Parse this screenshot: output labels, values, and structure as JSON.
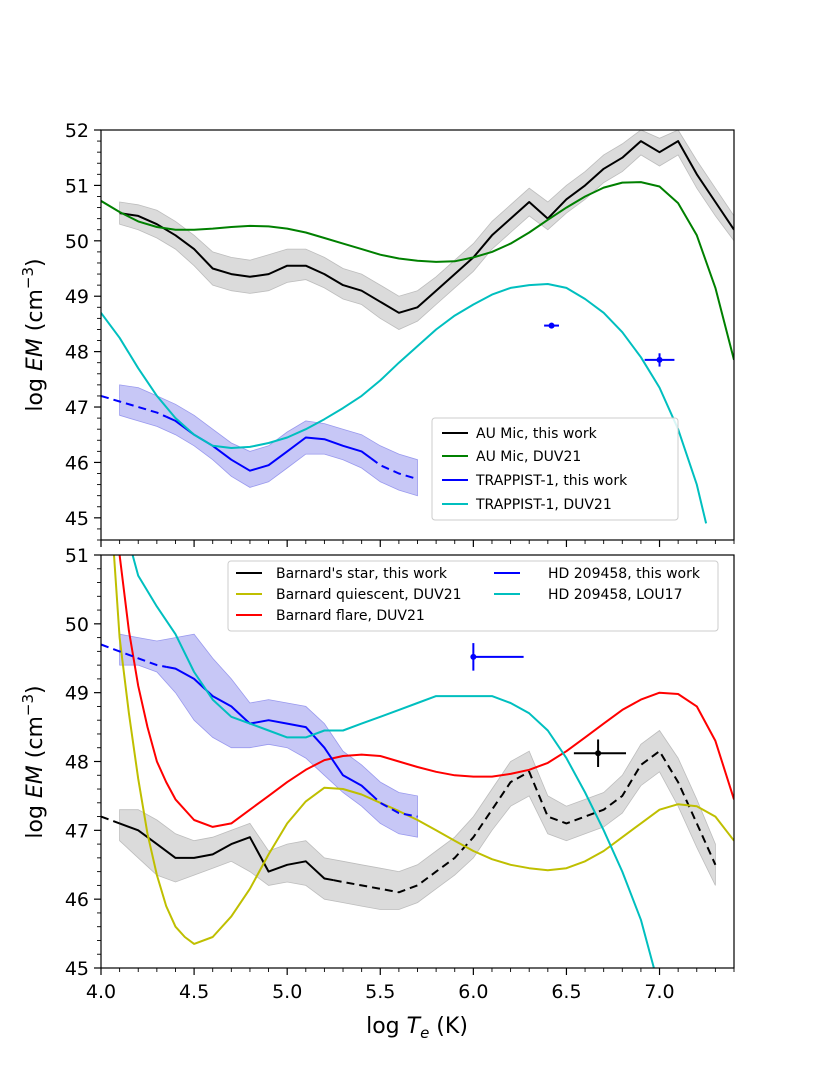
{
  "chart_data": [
    {
      "type": "line",
      "panel": "top",
      "xlim": [
        4.0,
        7.4
      ],
      "ylim": [
        44.6,
        52.0
      ],
      "ylabel_prefix": "log ",
      "ylabel_em": "EM",
      "ylabel_unit": " (cm",
      "ylabel_sup": "−3",
      "ylabel_close": ")",
      "yticks": [
        45,
        46,
        47,
        48,
        49,
        50,
        51,
        52
      ],
      "ytick_labels": [
        "45",
        "46",
        "47",
        "48",
        "49",
        "50",
        "51",
        "52"
      ],
      "grid": false,
      "legend_position": "lower-right",
      "series": [
        {
          "name": "AU Mic, this work",
          "color": "#000000",
          "style": "solid",
          "band_color": "#bdbdbd",
          "x": [
            4.1,
            4.2,
            4.3,
            4.4,
            4.5,
            4.6,
            4.7,
            4.8,
            4.9,
            5.0,
            5.1,
            5.2,
            5.3,
            5.4,
            5.5,
            5.6,
            5.7,
            5.8,
            5.9,
            6.0,
            6.1,
            6.2,
            6.3,
            6.4,
            6.5,
            6.6,
            6.7,
            6.8,
            6.9,
            7.0,
            7.1,
            7.2,
            7.3,
            7.4
          ],
          "values": [
            50.5,
            50.45,
            50.3,
            50.1,
            49.85,
            49.5,
            49.4,
            49.35,
            49.4,
            49.55,
            49.55,
            49.4,
            49.2,
            49.1,
            48.9,
            48.7,
            48.8,
            49.1,
            49.4,
            49.7,
            50.1,
            50.4,
            50.7,
            50.4,
            50.75,
            51.0,
            51.3,
            51.5,
            51.8,
            51.6,
            51.8,
            51.2,
            50.7,
            50.2
          ],
          "band_low": [
            50.3,
            50.2,
            50.05,
            49.85,
            49.55,
            49.2,
            49.1,
            49.05,
            49.1,
            49.25,
            49.3,
            49.15,
            48.95,
            48.85,
            48.6,
            48.4,
            48.55,
            48.85,
            49.15,
            49.45,
            49.85,
            50.15,
            50.45,
            50.2,
            50.5,
            50.75,
            51.05,
            51.25,
            51.55,
            51.35,
            51.55,
            50.95,
            50.45,
            50.0
          ],
          "band_high": [
            50.7,
            50.65,
            50.55,
            50.35,
            50.1,
            49.8,
            49.7,
            49.65,
            49.75,
            49.85,
            49.85,
            49.7,
            49.5,
            49.4,
            49.2,
            49.0,
            49.1,
            49.35,
            49.65,
            49.95,
            50.35,
            50.65,
            50.95,
            50.7,
            51.0,
            51.25,
            51.55,
            51.75,
            52.0,
            51.85,
            52.0,
            51.45,
            50.95,
            50.45
          ]
        },
        {
          "name": "AU Mic, DUV21",
          "color": "#008000",
          "style": "solid",
          "x": [
            4.0,
            4.1,
            4.2,
            4.3,
            4.4,
            4.5,
            4.6,
            4.7,
            4.8,
            4.9,
            5.0,
            5.1,
            5.2,
            5.3,
            5.4,
            5.5,
            5.6,
            5.7,
            5.8,
            5.9,
            6.0,
            6.1,
            6.2,
            6.3,
            6.4,
            6.5,
            6.6,
            6.7,
            6.8,
            6.9,
            7.0,
            7.1,
            7.2,
            7.3,
            7.4
          ],
          "values": [
            50.72,
            50.52,
            50.35,
            50.25,
            50.2,
            50.2,
            50.22,
            50.25,
            50.27,
            50.26,
            50.22,
            50.15,
            50.05,
            49.95,
            49.85,
            49.75,
            49.68,
            49.64,
            49.62,
            49.63,
            49.7,
            49.8,
            49.95,
            50.15,
            50.38,
            50.6,
            50.8,
            50.96,
            51.05,
            51.06,
            50.98,
            50.68,
            50.1,
            49.15,
            47.85
          ]
        },
        {
          "name": "TRAPPIST-1, this work",
          "color": "#0000ff",
          "style": "solid",
          "band_color": "#9999ee",
          "x": [
            4.0,
            4.1,
            4.2,
            4.3,
            4.4,
            4.5,
            4.6,
            4.7,
            4.8,
            4.9,
            5.0,
            5.1,
            5.2,
            5.3,
            5.4,
            5.5,
            5.6,
            5.7
          ],
          "values": [
            47.2,
            47.1,
            47.0,
            46.9,
            46.75,
            46.5,
            46.3,
            46.05,
            45.85,
            45.95,
            46.2,
            46.45,
            46.42,
            46.3,
            46.2,
            45.95,
            45.8,
            45.7
          ],
          "dashed_before": 4.35,
          "dashed_after": 5.45,
          "band_x": [
            4.1,
            4.2,
            4.3,
            4.4,
            4.5,
            4.6,
            4.7,
            4.8,
            4.9,
            5.0,
            5.1,
            5.2,
            5.3,
            5.4,
            5.5,
            5.6,
            5.7
          ],
          "band_low": [
            46.85,
            46.75,
            46.65,
            46.5,
            46.3,
            46.05,
            45.75,
            45.55,
            45.65,
            45.9,
            46.15,
            46.15,
            46.05,
            45.9,
            45.65,
            45.5,
            45.4
          ],
          "band_high": [
            47.4,
            47.35,
            47.2,
            47.05,
            46.85,
            46.6,
            46.35,
            46.2,
            46.3,
            46.55,
            46.75,
            46.7,
            46.6,
            46.5,
            46.3,
            46.15,
            46.05
          ]
        },
        {
          "name": "TRAPPIST-1, DUV21",
          "color": "#00bfbf",
          "style": "solid",
          "x": [
            4.0,
            4.1,
            4.2,
            4.3,
            4.4,
            4.5,
            4.6,
            4.7,
            4.8,
            4.9,
            5.0,
            5.1,
            5.2,
            5.3,
            5.4,
            5.5,
            5.6,
            5.7,
            5.8,
            5.9,
            6.0,
            6.1,
            6.2,
            6.3,
            6.4,
            6.5,
            6.6,
            6.7,
            6.8,
            6.9,
            7.0,
            7.1,
            7.2,
            7.25
          ],
          "values": [
            48.7,
            48.25,
            47.7,
            47.2,
            46.8,
            46.5,
            46.3,
            46.26,
            46.28,
            46.35,
            46.45,
            46.6,
            46.78,
            46.98,
            47.2,
            47.48,
            47.8,
            48.1,
            48.4,
            48.65,
            48.85,
            49.03,
            49.15,
            49.2,
            49.22,
            49.15,
            48.95,
            48.7,
            48.35,
            47.9,
            47.35,
            46.6,
            45.6,
            44.9
          ]
        }
      ],
      "points": [
        {
          "x": 6.42,
          "y": 48.47,
          "xerr": 0.04,
          "yerr": 0.05,
          "color": "#0000ff"
        },
        {
          "x": 7.0,
          "y": 47.85,
          "xerr": 0.08,
          "yerr": 0.12,
          "color": "#0000ff"
        }
      ]
    },
    {
      "type": "line",
      "panel": "bottom",
      "xlim": [
        4.0,
        7.4
      ],
      "ylim": [
        45.0,
        51.0
      ],
      "xlabel_prefix": "log ",
      "xlabel_t": "T",
      "xlabel_sub": "e",
      "xlabel_unit": " (K)",
      "ylabel_prefix": "log ",
      "ylabel_em": "EM",
      "ylabel_unit": " (cm",
      "ylabel_sup": "−3",
      "ylabel_close": ")",
      "xticks": [
        4.0,
        4.5,
        5.0,
        5.5,
        6.0,
        6.5,
        7.0
      ],
      "xtick_labels": [
        "4.0",
        "4.5",
        "5.0",
        "5.5",
        "6.0",
        "6.5",
        "7.0"
      ],
      "yticks": [
        45,
        46,
        47,
        48,
        49,
        50,
        51
      ],
      "ytick_labels": [
        "45",
        "46",
        "47",
        "48",
        "49",
        "50",
        "51"
      ],
      "grid": false,
      "legend_position": "top-right",
      "series": [
        {
          "name": "Barnard's star, this work",
          "color": "#000000",
          "style": "solid",
          "band_color": "#bdbdbd",
          "x": [
            4.0,
            4.1,
            4.2,
            4.3,
            4.4,
            4.5,
            4.6,
            4.7,
            4.8,
            4.9,
            5.0,
            5.1,
            5.2,
            5.3,
            5.4,
            5.5,
            5.6,
            5.7,
            5.8,
            5.9,
            6.0,
            6.1,
            6.2,
            6.3,
            6.4,
            6.5,
            6.6,
            6.7,
            6.8,
            6.9,
            7.0,
            7.1,
            7.2,
            7.3
          ],
          "values": [
            47.2,
            47.1,
            47.0,
            46.8,
            46.6,
            46.6,
            46.65,
            46.8,
            46.9,
            46.4,
            46.5,
            46.55,
            46.3,
            46.25,
            46.2,
            46.15,
            46.1,
            46.2,
            46.4,
            46.6,
            46.9,
            47.3,
            47.7,
            47.85,
            47.2,
            47.1,
            47.2,
            47.3,
            47.5,
            47.95,
            48.15,
            47.7,
            47.1,
            46.5
          ],
          "dashed_before": 4.1,
          "dashed_after": 5.25,
          "band_x": [
            4.1,
            4.2,
            4.3,
            4.4,
            4.5,
            4.6,
            4.7,
            4.8,
            4.9,
            5.0,
            5.1,
            5.2,
            5.3,
            5.4,
            5.5,
            5.6,
            5.7,
            5.8,
            5.9,
            6.0,
            6.1,
            6.2,
            6.3,
            6.4,
            6.5,
            6.6,
            6.7,
            6.8,
            6.9,
            7.0,
            7.1,
            7.2,
            7.3
          ],
          "band_low": [
            46.85,
            46.6,
            46.35,
            46.25,
            46.35,
            46.45,
            46.55,
            46.4,
            46.2,
            46.25,
            46.2,
            46.0,
            45.95,
            45.9,
            45.85,
            45.85,
            45.95,
            46.15,
            46.35,
            46.6,
            47.0,
            47.35,
            47.5,
            46.95,
            46.85,
            46.95,
            47.05,
            47.25,
            47.65,
            47.85,
            47.35,
            46.75,
            46.2
          ],
          "band_high": [
            47.3,
            47.3,
            47.15,
            46.95,
            46.85,
            46.9,
            47.0,
            47.1,
            46.7,
            46.8,
            46.85,
            46.6,
            46.55,
            46.5,
            46.45,
            46.4,
            46.5,
            46.7,
            46.9,
            47.2,
            47.6,
            48.0,
            48.15,
            47.5,
            47.35,
            47.45,
            47.55,
            47.8,
            48.25,
            48.45,
            48.05,
            47.45,
            46.8
          ]
        },
        {
          "name": "Barnard quiescent, DUV21",
          "color": "#bfbf00",
          "style": "solid",
          "x": [
            4.07,
            4.1,
            4.15,
            4.2,
            4.25,
            4.3,
            4.35,
            4.4,
            4.45,
            4.5,
            4.6,
            4.7,
            4.8,
            4.9,
            5.0,
            5.1,
            5.2,
            5.3,
            5.4,
            5.5,
            5.6,
            5.7,
            5.8,
            5.9,
            6.0,
            6.1,
            6.2,
            6.3,
            6.4,
            6.5,
            6.6,
            6.7,
            6.8,
            6.9,
            7.0,
            7.1,
            7.2,
            7.3,
            7.4
          ],
          "values": [
            51.0,
            49.8,
            48.7,
            47.75,
            46.95,
            46.35,
            45.9,
            45.6,
            45.45,
            45.35,
            45.45,
            45.75,
            46.15,
            46.65,
            47.1,
            47.42,
            47.62,
            47.6,
            47.52,
            47.4,
            47.28,
            47.15,
            47.0,
            46.85,
            46.7,
            46.58,
            46.5,
            46.45,
            46.42,
            46.45,
            46.55,
            46.7,
            46.9,
            47.1,
            47.3,
            47.38,
            47.35,
            47.2,
            46.85
          ]
        },
        {
          "name": "Barnard flare, DUV21",
          "color": "#ff0000",
          "style": "solid",
          "x": [
            4.1,
            4.15,
            4.2,
            4.25,
            4.3,
            4.35,
            4.4,
            4.5,
            4.6,
            4.7,
            4.8,
            4.9,
            5.0,
            5.1,
            5.2,
            5.3,
            5.4,
            5.5,
            5.6,
            5.7,
            5.8,
            5.9,
            6.0,
            6.1,
            6.2,
            6.3,
            6.4,
            6.5,
            6.6,
            6.7,
            6.8,
            6.9,
            7.0,
            7.1,
            7.2,
            7.3,
            7.4
          ],
          "values": [
            51.0,
            49.9,
            49.1,
            48.5,
            48.0,
            47.7,
            47.45,
            47.15,
            47.05,
            47.1,
            47.3,
            47.5,
            47.7,
            47.88,
            48.02,
            48.08,
            48.1,
            48.08,
            48.0,
            47.92,
            47.85,
            47.8,
            47.78,
            47.78,
            47.82,
            47.88,
            47.98,
            48.15,
            48.35,
            48.55,
            48.75,
            48.9,
            49.0,
            48.98,
            48.8,
            48.3,
            47.45
          ]
        },
        {
          "name": "HD 209458, this work",
          "color": "#0000ff",
          "style": "solid",
          "band_color": "#9999ee",
          "x": [
            4.0,
            4.1,
            4.2,
            4.3,
            4.4,
            4.5,
            4.6,
            4.7,
            4.8,
            4.9,
            5.0,
            5.1,
            5.2,
            5.3,
            5.4,
            5.5,
            5.6,
            5.7
          ],
          "values": [
            49.7,
            49.6,
            49.5,
            49.4,
            49.35,
            49.2,
            48.95,
            48.8,
            48.55,
            48.6,
            48.55,
            48.5,
            48.2,
            47.8,
            47.65,
            47.4,
            47.25,
            47.2
          ],
          "dashed_before": 4.35,
          "dashed_after": 5.45,
          "band_x": [
            4.1,
            4.2,
            4.3,
            4.4,
            4.5,
            4.6,
            4.7,
            4.8,
            4.9,
            5.0,
            5.1,
            5.2,
            5.3,
            5.4,
            5.5,
            5.6,
            5.7
          ],
          "band_low": [
            49.4,
            49.4,
            49.3,
            49.0,
            48.6,
            48.35,
            48.2,
            48.2,
            48.25,
            48.2,
            48.05,
            47.8,
            47.55,
            47.35,
            47.1,
            46.95,
            46.9
          ],
          "band_high": [
            49.85,
            49.8,
            49.75,
            49.8,
            49.85,
            49.5,
            49.2,
            48.85,
            48.9,
            48.85,
            48.8,
            48.55,
            48.15,
            47.95,
            47.7,
            47.55,
            47.5
          ]
        },
        {
          "name": "HD 209458, LOU17",
          "color": "#00bfbf",
          "style": "solid",
          "x": [
            4.17,
            4.2,
            4.3,
            4.4,
            4.5,
            4.6,
            4.7,
            4.8,
            4.9,
            5.0,
            5.1,
            5.2,
            5.3,
            5.4,
            5.5,
            5.6,
            5.7,
            5.8,
            5.9,
            6.0,
            6.1,
            6.2,
            6.3,
            6.4,
            6.5,
            6.6,
            6.7,
            6.8,
            6.9,
            6.97
          ],
          "values": [
            51.0,
            50.7,
            50.25,
            49.85,
            49.3,
            48.9,
            48.65,
            48.55,
            48.45,
            48.35,
            48.35,
            48.45,
            48.45,
            48.55,
            48.65,
            48.75,
            48.85,
            48.95,
            48.95,
            48.95,
            48.95,
            48.85,
            48.7,
            48.45,
            48.05,
            47.55,
            47.0,
            46.4,
            45.7,
            45.0
          ]
        }
      ],
      "points": [
        {
          "x": 6.0,
          "y": 49.52,
          "xerr_low": 0.0,
          "xerr_high": 0.27,
          "yerr": 0.2,
          "color": "#0000ff"
        },
        {
          "x": 6.67,
          "y": 48.12,
          "xerr_low": 0.13,
          "xerr_high": 0.15,
          "yerr": 0.2,
          "color": "#000000"
        }
      ]
    }
  ]
}
